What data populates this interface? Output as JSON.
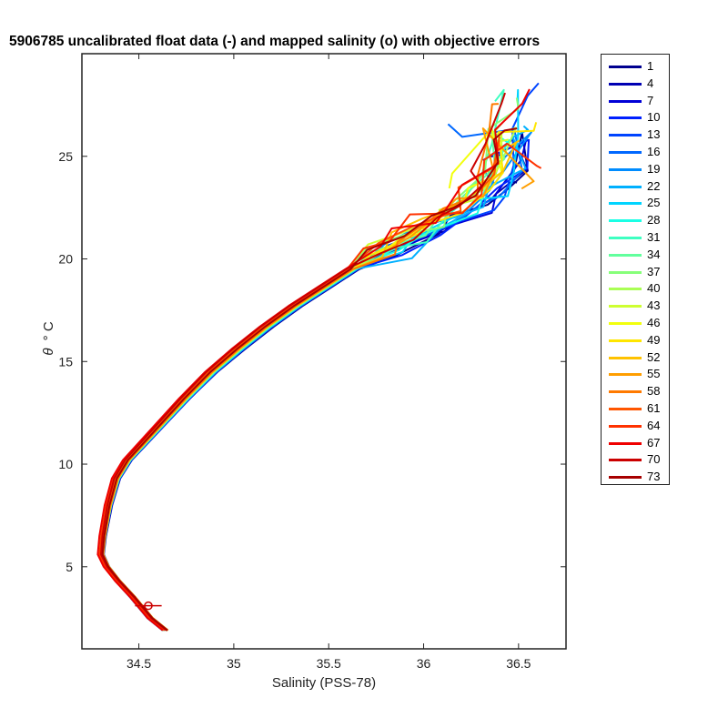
{
  "chart_data": {
    "type": "line",
    "title": "5906785 uncalibrated float data (-) and mapped salinity (o) with objective errors",
    "xlabel": "Salinity (PSS-78)",
    "ylabel_theta": "θ",
    "ylabel_unit": "° C",
    "xlim": [
      34.2,
      36.75
    ],
    "ylim": [
      1.0,
      30.0
    ],
    "xticks": [
      34.5,
      35,
      35.5,
      36,
      36.5
    ],
    "xtick_labels": [
      "34.5",
      "35",
      "35.5",
      "36",
      "36.5"
    ],
    "yticks": [
      5,
      10,
      15,
      20,
      25
    ],
    "ytick_labels": [
      "5",
      "10",
      "15",
      "20",
      "25"
    ],
    "grid": false,
    "legend_position": "outside-right",
    "legend": [
      "1",
      "4",
      "7",
      "10",
      "13",
      "16",
      "19",
      "22",
      "25",
      "28",
      "31",
      "34",
      "37",
      "40",
      "43",
      "46",
      "49",
      "52",
      "55",
      "58",
      "61",
      "64",
      "67",
      "70",
      "73"
    ],
    "legend_colors": [
      "#00008f",
      "#0000b3",
      "#0000d7",
      "#0020ff",
      "#0044ff",
      "#0068ff",
      "#008cff",
      "#00b0ff",
      "#00d4ff",
      "#1affe5",
      "#3effc1",
      "#62ff9d",
      "#86ff79",
      "#aaff55",
      "#ceff31",
      "#f2ff0d",
      "#ffe600",
      "#ffc200",
      "#ff9e00",
      "#ff7a00",
      "#ff5600",
      "#ff3200",
      "#ef0000",
      "#cb0000",
      "#a70000"
    ],
    "mean_profile": {
      "salinity": [
        34.64,
        34.56,
        34.47,
        34.39,
        34.33,
        34.3,
        34.31,
        34.34,
        34.38,
        34.44,
        34.52,
        34.62,
        34.74,
        34.88,
        35.02,
        35.17,
        35.32,
        35.47,
        35.62,
        35.8,
        35.95,
        36.08,
        36.2,
        36.32,
        36.4,
        36.45
      ],
      "theta": [
        1.9,
        2.5,
        3.5,
        4.3,
        5.0,
        5.6,
        6.5,
        8.0,
        9.3,
        10.2,
        11.0,
        12.0,
        13.2,
        14.5,
        15.6,
        16.7,
        17.7,
        18.6,
        19.5,
        20.4,
        21.2,
        21.9,
        22.6,
        23.3,
        24.5,
        26.0
      ]
    },
    "series": [
      {
        "name": "1"
      },
      {
        "name": "4"
      },
      {
        "name": "7"
      },
      {
        "name": "10"
      },
      {
        "name": "13"
      },
      {
        "name": "16"
      },
      {
        "name": "19"
      },
      {
        "name": "22"
      },
      {
        "name": "25"
      },
      {
        "name": "28"
      },
      {
        "name": "31"
      },
      {
        "name": "34"
      },
      {
        "name": "37"
      },
      {
        "name": "40"
      },
      {
        "name": "43"
      },
      {
        "name": "46"
      },
      {
        "name": "49"
      },
      {
        "name": "52"
      },
      {
        "name": "55"
      },
      {
        "name": "58"
      },
      {
        "name": "61"
      },
      {
        "name": "64"
      },
      {
        "name": "67"
      },
      {
        "name": "70"
      },
      {
        "name": "73"
      }
    ],
    "mapped_salinity": {
      "salinity": 34.55,
      "theta": 3.1,
      "error": 0.07
    }
  }
}
